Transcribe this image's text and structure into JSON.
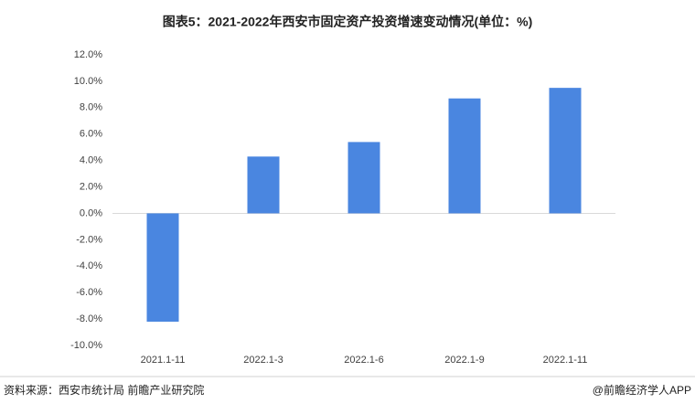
{
  "chart_data": {
    "type": "bar",
    "title": "图表5：2021-2022年西安市固定资产投资增速变动情况(单位：%)",
    "categories": [
      "2021.1-11",
      "2022.1-3",
      "2022.1-6",
      "2022.1-9",
      "2022.1-11"
    ],
    "values": [
      -8.2,
      4.3,
      5.4,
      8.7,
      9.5
    ],
    "color": "#4a86e0",
    "ylim": [
      -10,
      12
    ],
    "yticks": [
      {
        "value": -10,
        "label": "-10.0%"
      },
      {
        "value": -8,
        "label": "-8.0%"
      },
      {
        "value": -6,
        "label": "-6.0%"
      },
      {
        "value": -4,
        "label": "-4.0%"
      },
      {
        "value": -2,
        "label": "-2.0%"
      },
      {
        "value": 0,
        "label": "0.0%"
      },
      {
        "value": 2,
        "label": "2.0%"
      },
      {
        "value": 4,
        "label": "4.0%"
      },
      {
        "value": 6,
        "label": "6.0%"
      },
      {
        "value": 8,
        "label": "8.0%"
      },
      {
        "value": 10,
        "label": "10.0%"
      },
      {
        "value": 12,
        "label": "12.0%"
      }
    ],
    "source": "资料来源：西安市统计局 前瞻产业研究院",
    "credit": "@前瞻经济学人APP"
  }
}
